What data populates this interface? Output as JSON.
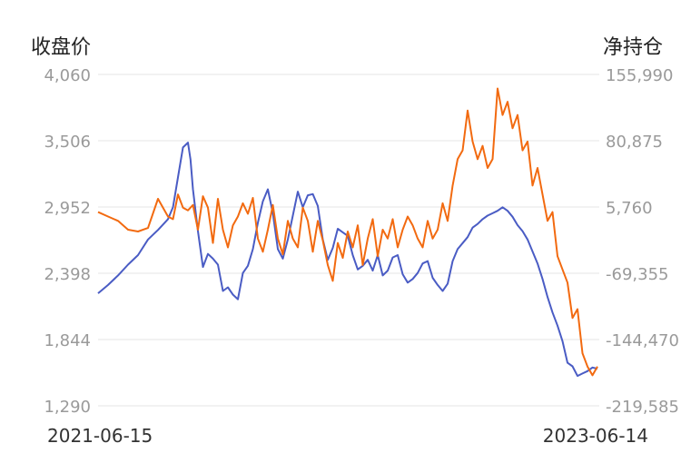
{
  "chart_data": {
    "type": "line",
    "left_axis_label": "收盘价",
    "right_axis_label": "净持仓",
    "left_ticks": [
      "4,060",
      "3,506",
      "2,952",
      "2,398",
      "1,844",
      "1,290"
    ],
    "right_ticks": [
      "155,990",
      "80,875",
      "5,760",
      "-69,355",
      "-144,470",
      "-219,585"
    ],
    "x_start": "2021-06-15",
    "x_end": "2023-06-14",
    "left_range": [
      1290,
      4060
    ],
    "right_range": [
      -219585,
      155990
    ],
    "grid": true,
    "series": [
      {
        "color": "#4a5cc4",
        "axis": "left",
        "t": [
          0,
          0.02,
          0.04,
          0.06,
          0.08,
          0.1,
          0.12,
          0.14,
          0.15,
          0.16,
          0.17,
          0.18,
          0.185,
          0.19,
          0.2,
          0.21,
          0.22,
          0.23,
          0.24,
          0.25,
          0.26,
          0.27,
          0.28,
          0.29,
          0.3,
          0.31,
          0.32,
          0.33,
          0.34,
          0.35,
          0.36,
          0.37,
          0.38,
          0.39,
          0.4,
          0.41,
          0.42,
          0.43,
          0.44,
          0.45,
          0.46,
          0.47,
          0.48,
          0.49,
          0.5,
          0.51,
          0.52,
          0.53,
          0.54,
          0.55,
          0.56,
          0.57,
          0.58,
          0.59,
          0.6,
          0.61,
          0.62,
          0.63,
          0.64,
          0.65,
          0.66,
          0.67,
          0.68,
          0.69,
          0.7,
          0.71,
          0.72,
          0.73,
          0.74,
          0.75,
          0.76,
          0.77,
          0.78,
          0.79,
          0.8,
          0.81,
          0.82,
          0.83,
          0.84,
          0.85,
          0.86,
          0.87,
          0.88,
          0.89,
          0.9,
          0.91,
          0.92,
          0.93,
          0.94,
          0.95,
          0.96,
          0.97,
          0.98,
          0.99,
          1.0
        ],
        "values": [
          2230,
          2300,
          2380,
          2470,
          2550,
          2680,
          2760,
          2850,
          2950,
          3200,
          3450,
          3490,
          3350,
          3100,
          2750,
          2450,
          2560,
          2520,
          2470,
          2250,
          2280,
          2220,
          2180,
          2400,
          2460,
          2600,
          2820,
          3000,
          3100,
          2900,
          2600,
          2520,
          2680,
          2880,
          3080,
          2950,
          3050,
          3060,
          2960,
          2680,
          2510,
          2610,
          2770,
          2740,
          2710,
          2550,
          2430,
          2460,
          2510,
          2420,
          2550,
          2380,
          2420,
          2530,
          2550,
          2390,
          2320,
          2350,
          2400,
          2480,
          2500,
          2360,
          2300,
          2250,
          2310,
          2500,
          2600,
          2650,
          2700,
          2780,
          2810,
          2850,
          2880,
          2900,
          2920,
          2950,
          2920,
          2870,
          2800,
          2750,
          2680,
          2580,
          2480,
          2350,
          2200,
          2070,
          1960,
          1830,
          1650,
          1620,
          1540,
          1560,
          1580,
          1610,
          1600
        ]
      },
      {
        "color": "#f26a10",
        "axis": "right",
        "t": [
          0,
          0.02,
          0.04,
          0.06,
          0.08,
          0.1,
          0.12,
          0.14,
          0.15,
          0.16,
          0.17,
          0.18,
          0.19,
          0.2,
          0.21,
          0.22,
          0.23,
          0.24,
          0.25,
          0.26,
          0.27,
          0.28,
          0.29,
          0.3,
          0.31,
          0.32,
          0.33,
          0.34,
          0.35,
          0.36,
          0.37,
          0.38,
          0.39,
          0.4,
          0.41,
          0.42,
          0.43,
          0.44,
          0.45,
          0.46,
          0.47,
          0.48,
          0.49,
          0.5,
          0.51,
          0.52,
          0.53,
          0.54,
          0.55,
          0.56,
          0.57,
          0.58,
          0.59,
          0.6,
          0.61,
          0.62,
          0.63,
          0.64,
          0.65,
          0.66,
          0.67,
          0.68,
          0.69,
          0.7,
          0.71,
          0.72,
          0.73,
          0.74,
          0.75,
          0.76,
          0.77,
          0.78,
          0.79,
          0.8,
          0.81,
          0.82,
          0.83,
          0.84,
          0.85,
          0.86,
          0.87,
          0.88,
          0.89,
          0.9,
          0.91,
          0.92,
          0.93,
          0.94,
          0.95,
          0.96,
          0.97,
          0.98,
          0.99,
          1.0
        ],
        "values": [
          0,
          -5000,
          -10000,
          -20000,
          -22000,
          -18000,
          15000,
          -5000,
          -8000,
          20000,
          5000,
          2000,
          8000,
          -20000,
          18000,
          5000,
          -35000,
          15000,
          -20000,
          -40000,
          -15000,
          -5000,
          10000,
          -2000,
          16000,
          -30000,
          -45000,
          -20000,
          8000,
          -30000,
          -48000,
          -10000,
          -30000,
          -40000,
          5000,
          -10000,
          -45000,
          -10000,
          -32000,
          -60000,
          -78000,
          -35000,
          -52000,
          -22000,
          -40000,
          -15000,
          -60000,
          -30000,
          -8000,
          -50000,
          -20000,
          -30000,
          -8000,
          -40000,
          -20000,
          -5000,
          -15000,
          -30000,
          -40000,
          -10000,
          -30000,
          -20000,
          10000,
          -10000,
          30000,
          60000,
          70000,
          115000,
          80000,
          60000,
          75000,
          50000,
          60000,
          140000,
          110000,
          125000,
          95000,
          110000,
          70000,
          80000,
          30000,
          50000,
          20000,
          -10000,
          0,
          -50000,
          -65000,
          -80000,
          -120000,
          -110000,
          -160000,
          -175000,
          -185000,
          -175000
        ]
      }
    ]
  }
}
